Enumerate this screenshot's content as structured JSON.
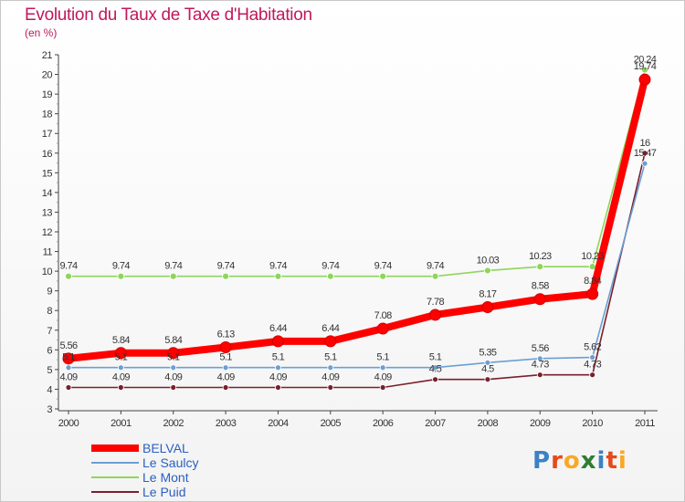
{
  "title": "Evolution du Taux de Taxe d'Habitation",
  "subtitle": "(en %)",
  "logo": {
    "text": "Proxiti",
    "letters": [
      {
        "ch": "P",
        "color": "#3b82c4"
      },
      {
        "ch": "r",
        "color": "#e64a19"
      },
      {
        "ch": "o",
        "color": "#f9a825"
      },
      {
        "ch": "x",
        "color": "#2e7d32"
      },
      {
        "ch": "i",
        "color": "#3b82c4"
      },
      {
        "ch": "t",
        "color": "#e64a19"
      },
      {
        "ch": "i",
        "color": "#f9a825"
      }
    ]
  },
  "chart_data": {
    "type": "line",
    "x": [
      "2000",
      "2001",
      "2002",
      "2003",
      "2004",
      "2005",
      "2006",
      "2007",
      "2008",
      "2009",
      "2010",
      "2011"
    ],
    "ylim": [
      3,
      21
    ],
    "yticks": [
      3,
      4,
      5,
      6,
      7,
      8,
      9,
      10,
      11,
      12,
      13,
      14,
      15,
      16,
      17,
      18,
      19,
      20,
      21
    ],
    "grid": false,
    "legend_position": "bottom-left",
    "series": [
      {
        "name": "BELVAL",
        "color": "#ff0000",
        "stroke": 8,
        "marker": 6,
        "values": [
          5.56,
          5.84,
          5.84,
          6.13,
          6.44,
          6.44,
          7.08,
          7.78,
          8.17,
          8.58,
          8.84,
          19.74
        ],
        "labels": [
          "5.56",
          "5.84",
          "5.84",
          "6.13",
          "6.44",
          "6.44",
          "7.08",
          "7.78",
          "8.17",
          "8.58",
          "8.84",
          "19.74"
        ]
      },
      {
        "name": "Le Saulcy",
        "color": "#6a9fd4",
        "stroke": 1.6,
        "marker": 3,
        "values": [
          5.1,
          5.1,
          5.1,
          5.1,
          5.1,
          5.1,
          5.1,
          5.1,
          5.35,
          5.56,
          5.62,
          15.47
        ],
        "labels": [
          "5.1",
          "5.1",
          "5.1",
          "5.1",
          "5.1",
          "5.1",
          "5.1",
          "5.1",
          "5.35",
          "5.56",
          "5.62",
          "15.47"
        ]
      },
      {
        "name": "Le Mont",
        "color": "#8ed65a",
        "stroke": 1.6,
        "marker": 3.5,
        "values": [
          9.74,
          9.74,
          9.74,
          9.74,
          9.74,
          9.74,
          9.74,
          9.74,
          10.03,
          10.23,
          10.23,
          20.24
        ],
        "labels": [
          "9.74",
          "9.74",
          "9.74",
          "9.74",
          "9.74",
          "9.74",
          "9.74",
          "9.74",
          "10.03",
          "10.23",
          "10.23",
          "20.24"
        ]
      },
      {
        "name": "Le Puid",
        "color": "#7a1f2b",
        "stroke": 1.6,
        "marker": 3,
        "values": [
          4.09,
          4.09,
          4.09,
          4.09,
          4.09,
          4.09,
          4.09,
          4.5,
          4.5,
          4.73,
          4.73,
          16
        ],
        "labels": [
          "4.09",
          "4.09",
          "4.09",
          "4.09",
          "4.09",
          "4.09",
          "4.09",
          "4.5",
          "4.5",
          "4.73",
          "4.73",
          "16"
        ]
      }
    ]
  }
}
